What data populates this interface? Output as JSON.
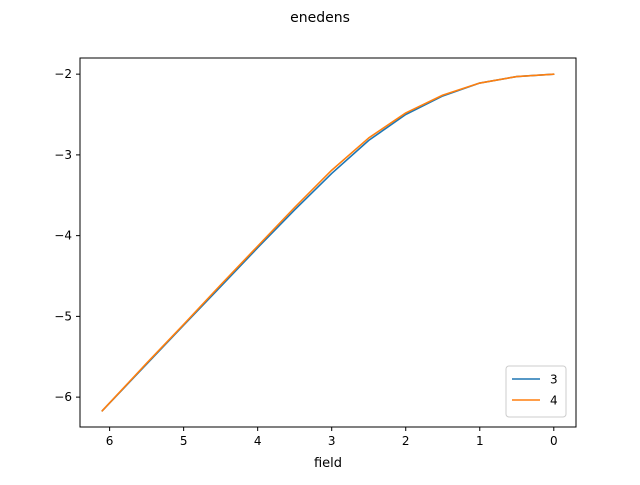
{
  "chart_data": {
    "type": "line",
    "title": "enedens",
    "xlabel": "field",
    "ylabel": "",
    "x_inverted": true,
    "xlim": [
      6.4,
      -0.3
    ],
    "ylim": [
      -6.37,
      -1.8
    ],
    "x_ticks": [
      6,
      5,
      4,
      3,
      2,
      1,
      0
    ],
    "x_tick_labels": [
      "6",
      "5",
      "4",
      "3",
      "2",
      "1",
      "0"
    ],
    "y_ticks": [
      -2,
      -3,
      -4,
      -5,
      -6
    ],
    "y_tick_labels": [
      "−2",
      "−3",
      "−4",
      "−5",
      "−6"
    ],
    "grid": false,
    "legend_position": "lower-right",
    "series": [
      {
        "name": "3",
        "color": "#1f77b4",
        "x": [
          6.1,
          5.5,
          5.0,
          4.5,
          4.0,
          3.5,
          3.0,
          2.5,
          2.0,
          1.5,
          1.0,
          0.5,
          0.0
        ],
        "y": [
          -6.17,
          -5.59,
          -5.11,
          -4.63,
          -4.15,
          -3.68,
          -3.23,
          -2.82,
          -2.5,
          -2.27,
          -2.11,
          -2.03,
          -2.0
        ]
      },
      {
        "name": "4",
        "color": "#ff7f0e",
        "x": [
          6.1,
          5.5,
          5.0,
          4.5,
          4.0,
          3.5,
          3.0,
          2.5,
          2.0,
          1.5,
          1.0,
          0.5,
          0.0
        ],
        "y": [
          -6.17,
          -5.58,
          -5.1,
          -4.61,
          -4.13,
          -3.65,
          -3.19,
          -2.79,
          -2.48,
          -2.26,
          -2.11,
          -2.03,
          -2.0
        ]
      }
    ]
  }
}
